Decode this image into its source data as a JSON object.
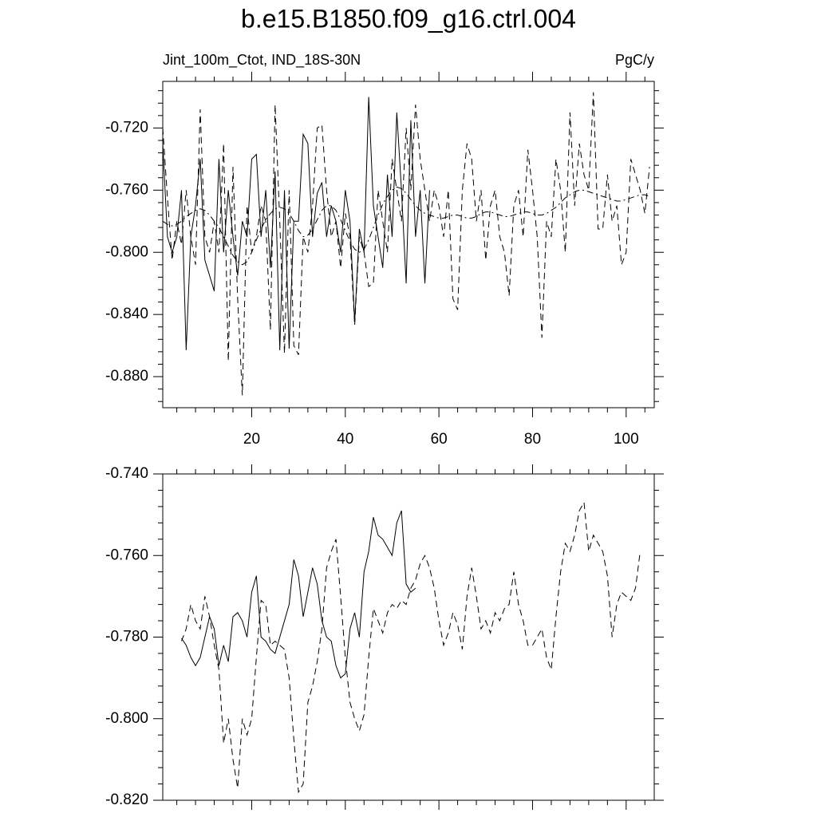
{
  "chart_data": [
    {
      "type": "line",
      "title": "b.e15.B1850.f09_g16.ctrl.004",
      "left_label": "Jint_100m_Ctot, IND_18S-30N",
      "right_label": "PgC/y",
      "x": [
        1,
        2,
        3,
        4,
        5,
        6,
        7,
        8,
        9,
        10,
        11,
        12,
        13,
        14,
        15,
        16,
        17,
        18,
        19,
        20,
        21,
        22,
        23,
        24,
        25,
        26,
        27,
        28,
        29,
        30,
        31,
        32,
        33,
        34,
        35,
        36,
        37,
        38,
        39,
        40,
        41,
        42,
        43,
        44,
        45,
        46,
        47,
        48,
        49,
        50,
        51,
        52,
        53,
        54,
        55,
        56,
        57,
        58,
        59,
        60,
        61,
        62,
        63,
        64,
        65,
        66,
        67,
        68,
        69,
        70,
        71,
        72,
        73,
        74,
        75,
        76,
        77,
        78,
        79,
        80,
        81,
        82,
        83,
        84,
        85,
        86,
        87,
        88,
        89,
        90,
        91,
        92,
        93,
        94,
        95,
        96,
        97,
        98,
        99,
        100,
        101,
        102,
        103,
        104,
        105
      ],
      "xlim": [
        1,
        106
      ],
      "xticks": [
        20,
        40,
        60,
        80,
        100
      ],
      "ylim": [
        -0.9,
        -0.69
      ],
      "yticks": [
        {
          "value": -0.72,
          "label": "-0.720"
        },
        {
          "value": -0.76,
          "label": "-0.760"
        },
        {
          "value": -0.8,
          "label": "-0.800"
        },
        {
          "value": -0.84,
          "label": "-0.840"
        },
        {
          "value": -0.88,
          "label": "-0.880"
        }
      ],
      "series": [
        {
          "color": "#000000",
          "dash": "solid",
          "values": [
            -0.73,
            -0.79,
            -0.8,
            -0.79,
            -0.76,
            -0.863,
            -0.79,
            -0.77,
            -0.74,
            -0.805,
            -0.815,
            -0.825,
            -0.74,
            -0.8,
            -0.76,
            -0.79,
            -0.815,
            -0.78,
            -0.79,
            -0.74,
            -0.737,
            -0.79,
            -0.76,
            -0.81,
            -0.748,
            -0.863,
            -0.76,
            -0.862,
            -0.78,
            -0.78,
            -0.724,
            -0.73,
            -0.79,
            -0.762,
            -0.755,
            -0.79,
            -0.77,
            -0.78,
            -0.8,
            -0.76,
            -0.78,
            -0.845,
            -0.785,
            -0.8,
            -0.7,
            -0.77,
            -0.79,
            -0.81,
            -0.75,
            -0.79,
            -0.71,
            -0.76,
            -0.82,
            -0.715,
            -0.79,
            -0.76,
            -0.82,
            -0.76,
            null,
            null,
            null,
            null,
            null,
            null,
            null,
            null,
            null,
            null,
            null,
            null,
            null,
            null,
            null,
            null,
            null,
            null,
            null,
            null,
            null,
            null,
            null,
            null,
            null,
            null,
            null,
            null,
            null,
            null,
            null,
            null,
            null,
            null,
            null,
            null,
            null,
            null,
            null,
            null,
            null,
            null,
            null,
            null,
            null,
            null,
            null
          ]
        },
        {
          "color": "#000000",
          "dash": "dashed",
          "values": [
            -0.72,
            -0.765,
            -0.805,
            -0.78,
            -0.795,
            -0.76,
            -0.79,
            -0.808,
            -0.708,
            -0.79,
            -0.8,
            -0.78,
            -0.8,
            -0.73,
            -0.87,
            -0.745,
            -0.83,
            -0.892,
            -0.77,
            -0.8,
            -0.79,
            -0.77,
            -0.78,
            -0.85,
            -0.705,
            -0.78,
            -0.865,
            -0.76,
            -0.86,
            -0.866,
            -0.79,
            -0.8,
            -0.77,
            -0.72,
            -0.718,
            -0.76,
            -0.79,
            -0.78,
            -0.81,
            -0.775,
            -0.79,
            -0.847,
            -0.79,
            -0.8,
            -0.822,
            -0.82,
            -0.76,
            -0.78,
            -0.8,
            -0.74,
            -0.76,
            -0.78,
            -0.72,
            -0.76,
            -0.705,
            -0.74,
            -0.76,
            -0.78,
            -0.76,
            -0.77,
            -0.79,
            -0.76,
            -0.83,
            -0.837,
            -0.76,
            -0.73,
            -0.74,
            -0.78,
            -0.76,
            -0.805,
            -0.77,
            -0.76,
            -0.79,
            -0.8,
            -0.828,
            -0.77,
            -0.76,
            -0.79,
            -0.734,
            -0.76,
            -0.79,
            -0.855,
            -0.78,
            -0.79,
            -0.74,
            -0.76,
            -0.8,
            -0.71,
            -0.77,
            -0.73,
            -0.75,
            -0.76,
            -0.697,
            -0.785,
            -0.785,
            -0.75,
            -0.78,
            -0.77,
            -0.808,
            -0.8,
            -0.74,
            -0.75,
            -0.76,
            -0.775,
            -0.745
          ]
        },
        {
          "color": "#000000",
          "dash": "dashdot",
          "values": [
            -0.78,
            -0.782,
            -0.783,
            -0.782,
            -0.78,
            -0.777,
            -0.775,
            -0.773,
            -0.772,
            -0.773,
            -0.776,
            -0.78,
            -0.784,
            -0.79,
            -0.796,
            -0.802,
            -0.806,
            -0.808,
            -0.806,
            -0.8,
            -0.792,
            -0.785,
            -0.779,
            -0.775,
            -0.772,
            -0.771,
            -0.772,
            -0.775,
            -0.78,
            -0.786,
            -0.79,
            -0.789,
            -0.785,
            -0.779,
            -0.773,
            -0.77,
            -0.77,
            -0.773,
            -0.779,
            -0.786,
            -0.793,
            -0.798,
            -0.8,
            -0.798,
            -0.792,
            -0.784,
            -0.776,
            -0.769,
            -0.764,
            -0.76,
            -0.758,
            -0.759,
            -0.762,
            -0.766,
            -0.77,
            -0.773,
            -0.775,
            -0.776,
            -0.777,
            -0.778,
            -0.778,
            -0.777,
            -0.776,
            -0.776,
            -0.777,
            -0.778,
            -0.778,
            -0.777,
            -0.775,
            -0.774,
            -0.774,
            -0.775,
            -0.776,
            -0.777,
            -0.777,
            -0.776,
            -0.775,
            -0.774,
            -0.774,
            -0.775,
            -0.776,
            -0.776,
            -0.775,
            -0.773,
            -0.771,
            -0.768,
            -0.765,
            -0.763,
            -0.761,
            -0.76,
            -0.76,
            -0.761,
            -0.762,
            -0.763,
            -0.764,
            -0.765,
            -0.766,
            -0.767,
            -0.767,
            -0.766,
            -0.765,
            -0.764,
            -0.763,
            -0.763,
            -0.764
          ]
        }
      ]
    },
    {
      "type": "line",
      "x": [
        1,
        2,
        3,
        4,
        5,
        6,
        7,
        8,
        9,
        10,
        11,
        12,
        13,
        14,
        15,
        16,
        17,
        18,
        19,
        20,
        21,
        22,
        23,
        24,
        25,
        26,
        27,
        28,
        29,
        30,
        31,
        32,
        33,
        34,
        35,
        36,
        37,
        38,
        39,
        40,
        41,
        42,
        43,
        44,
        45,
        46,
        47,
        48,
        49,
        50,
        51,
        52,
        53,
        54,
        55,
        56,
        57,
        58,
        59,
        60,
        61,
        62,
        63,
        64,
        65,
        66,
        67,
        68,
        69,
        70,
        71,
        72,
        73,
        74,
        75,
        76,
        77,
        78,
        79,
        80,
        81,
        82,
        83,
        84,
        85,
        86,
        87,
        88,
        89,
        90,
        91,
        92,
        93,
        94,
        95,
        96,
        97,
        98,
        99,
        100,
        101,
        102,
        103,
        104,
        105
      ],
      "xlim": [
        1,
        106
      ],
      "ylim": [
        -0.82,
        -0.74
      ],
      "yticks": [
        {
          "value": -0.74,
          "label": "-0.740"
        },
        {
          "value": -0.76,
          "label": "-0.760"
        },
        {
          "value": -0.78,
          "label": "-0.780"
        },
        {
          "value": -0.8,
          "label": "-0.800"
        },
        {
          "value": -0.82,
          "label": "-0.820"
        }
      ],
      "series": [
        {
          "color": "#000000",
          "dash": "solid",
          "values": [
            null,
            null,
            null,
            null,
            -0.7803,
            -0.782,
            -0.785,
            -0.787,
            -0.785,
            -0.78,
            -0.775,
            -0.778,
            -0.787,
            -0.782,
            -0.786,
            -0.775,
            -0.774,
            -0.776,
            -0.78,
            -0.769,
            -0.765,
            -0.78,
            -0.781,
            -0.783,
            -0.784,
            -0.78,
            -0.776,
            -0.772,
            -0.761,
            -0.765,
            -0.775,
            -0.769,
            -0.763,
            -0.767,
            -0.776,
            -0.78,
            -0.781,
            -0.787,
            -0.79,
            -0.789,
            -0.778,
            -0.774,
            -0.78,
            -0.764,
            -0.759,
            -0.7506,
            -0.755,
            -0.756,
            -0.758,
            -0.76,
            -0.752,
            -0.749,
            -0.767,
            -0.769,
            -0.768,
            null,
            null,
            null,
            null,
            null,
            null,
            null,
            null,
            null,
            null,
            null,
            null,
            null,
            null,
            null,
            null,
            null,
            null,
            null,
            null,
            null,
            null,
            null,
            null,
            null,
            null,
            null,
            null,
            null,
            null,
            null,
            null,
            null,
            null,
            null,
            null,
            null,
            null,
            null,
            null,
            null,
            null,
            null,
            null,
            null,
            null,
            null,
            null,
            null,
            null
          ]
        },
        {
          "color": "#000000",
          "dash": "dashed",
          "values": [
            null,
            null,
            null,
            null,
            -0.781,
            -0.778,
            -0.772,
            -0.776,
            -0.778,
            -0.77,
            -0.775,
            -0.782,
            -0.788,
            -0.806,
            -0.8,
            -0.81,
            -0.817,
            -0.8,
            -0.804,
            -0.8,
            -0.785,
            -0.771,
            -0.772,
            -0.782,
            -0.781,
            -0.782,
            -0.783,
            -0.79,
            -0.805,
            -0.818,
            -0.816,
            -0.796,
            -0.792,
            -0.786,
            -0.778,
            -0.763,
            -0.759,
            -0.756,
            -0.77,
            -0.785,
            -0.796,
            -0.8,
            -0.803,
            -0.799,
            -0.785,
            -0.773,
            -0.776,
            -0.779,
            -0.774,
            -0.772,
            -0.773,
            -0.771,
            -0.772,
            -0.768,
            -0.766,
            -0.762,
            -0.76,
            -0.763,
            -0.768,
            -0.776,
            -0.782,
            -0.779,
            -0.774,
            -0.777,
            -0.783,
            -0.77,
            -0.763,
            -0.77,
            -0.778,
            -0.776,
            -0.779,
            -0.774,
            -0.776,
            -0.773,
            -0.772,
            -0.764,
            -0.772,
            -0.776,
            -0.782,
            -0.782,
            -0.78,
            -0.778,
            -0.785,
            -0.788,
            -0.775,
            -0.764,
            -0.757,
            -0.759,
            -0.755,
            -0.749,
            -0.747,
            -0.759,
            -0.755,
            -0.757,
            -0.759,
            -0.765,
            -0.78,
            -0.772,
            -0.769,
            -0.77,
            -0.771,
            -0.768,
            -0.759,
            null,
            null
          ]
        }
      ]
    }
  ]
}
